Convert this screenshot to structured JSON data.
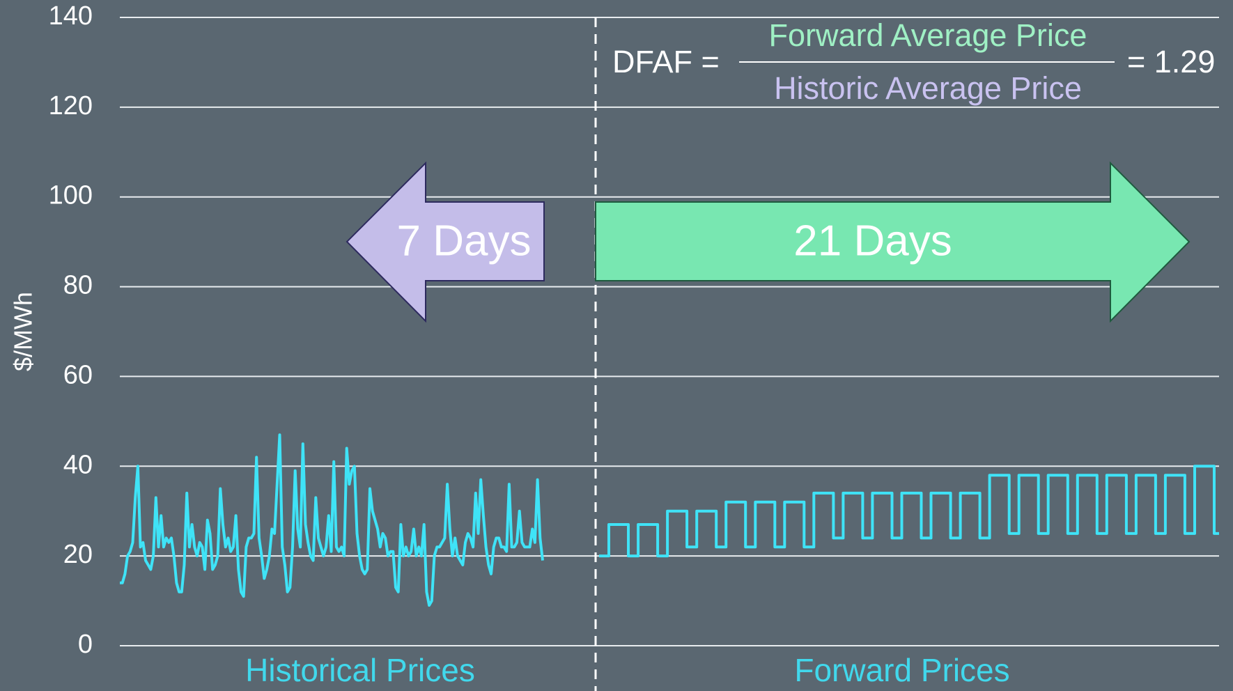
{
  "chart_data": {
    "type": "line",
    "ylabel": "$/MWh",
    "ylim": [
      0,
      140
    ],
    "yticks": [
      0,
      20,
      40,
      60,
      80,
      100,
      120,
      140
    ],
    "grid": true,
    "formula": {
      "lhs": "DFAF =",
      "numerator": "Forward Average Price",
      "denominator": "Historic Average Price",
      "result": "= 1.29"
    },
    "arrows": {
      "left": "7 Days",
      "right": "21 Days"
    },
    "series": [
      {
        "name": "Historical Prices",
        "color": "#3fe3f7",
        "values": [
          14,
          14,
          16,
          20,
          21,
          23,
          33,
          40,
          22,
          23,
          19,
          18,
          17,
          20,
          33,
          22,
          29,
          22,
          24,
          23,
          24,
          20,
          14,
          12,
          12,
          18,
          34,
          22,
          27,
          22,
          20,
          23,
          22,
          17,
          28,
          25,
          17,
          18,
          20,
          35,
          27,
          22,
          24,
          21,
          22,
          29,
          17,
          12,
          11,
          22,
          24,
          24,
          25,
          42,
          24,
          20,
          15,
          17,
          20,
          26,
          25,
          36,
          47,
          22,
          18,
          12,
          13,
          22,
          39,
          26,
          22,
          45,
          27,
          23,
          20,
          19,
          33,
          24,
          22,
          20,
          22,
          29,
          21,
          41,
          22,
          21,
          22,
          20,
          44,
          36,
          39,
          40,
          25,
          20,
          17,
          16,
          17,
          35,
          30,
          28,
          26,
          22,
          25,
          24,
          20,
          21,
          21,
          13,
          12,
          27,
          20,
          22,
          20,
          21,
          26,
          20,
          22,
          20,
          27,
          12,
          9,
          10,
          20,
          22,
          22,
          23,
          24,
          36,
          26,
          20,
          24,
          20,
          19,
          18,
          23,
          25,
          24,
          22,
          34,
          25,
          37,
          29,
          22,
          18,
          16,
          22,
          24,
          24,
          22,
          22,
          21,
          36,
          22,
          22,
          23,
          30,
          23,
          22,
          22,
          22,
          26,
          23,
          37,
          24,
          19
        ]
      },
      {
        "name": "Forward Prices",
        "color": "#3fe3f7",
        "values": [
          20,
          27,
          20,
          27,
          20,
          30,
          22,
          30,
          22,
          32,
          22,
          32,
          22,
          32,
          22,
          34,
          24,
          34,
          24,
          34,
          24,
          34,
          24,
          34,
          24,
          34,
          24,
          38,
          25,
          38,
          25,
          38,
          25,
          38,
          25,
          38,
          25,
          38,
          25,
          38,
          25,
          40,
          25
        ]
      }
    ]
  }
}
